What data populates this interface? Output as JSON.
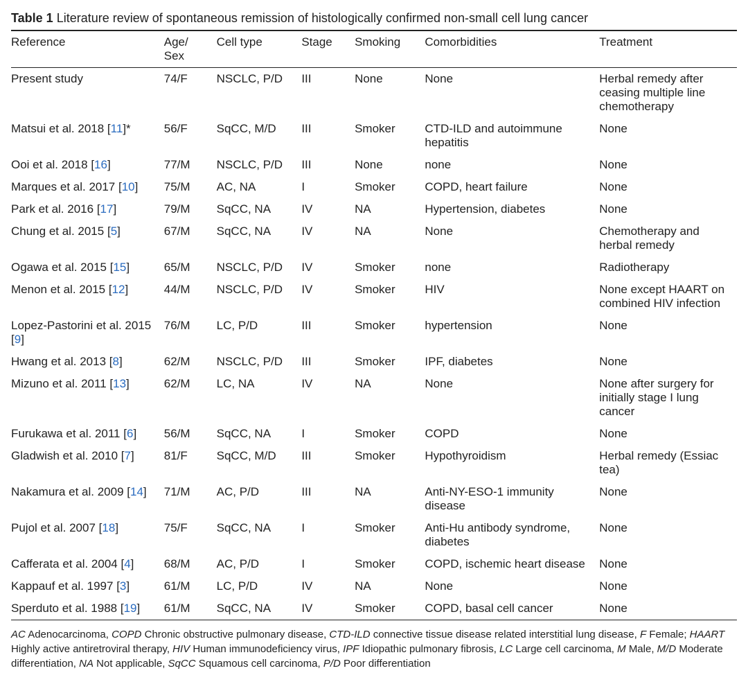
{
  "caption": {
    "label": "Table 1",
    "text": "Literature review of spontaneous remission of histologically confirmed non-small cell lung cancer"
  },
  "columns": [
    "Reference",
    "Age/\nSex",
    "Cell type",
    "Stage",
    "Smoking",
    "Comorbidities",
    "Treatment"
  ],
  "link_color": "#2a6bbf",
  "rows": [
    {
      "ref_text": "Present study",
      "ref_num": null,
      "suffix": "",
      "age": "74/F",
      "cell": "NSCLC, P/D",
      "stage": "III",
      "smoke": "None",
      "comor": "None",
      "treat": "Herbal remedy after ceasing multiple line chemotherapy"
    },
    {
      "ref_text": "Matsui et al. 2018 ",
      "ref_num": "11",
      "suffix": "*",
      "age": "56/F",
      "cell": "SqCC, M/D",
      "stage": "III",
      "smoke": "Smoker",
      "comor": "CTD-ILD and autoimmune hepatitis",
      "treat": "None"
    },
    {
      "ref_text": "Ooi et al. 2018 ",
      "ref_num": "16",
      "suffix": "",
      "age": "77/M",
      "cell": "NSCLC, P/D",
      "stage": "III",
      "smoke": "None",
      "comor": "none",
      "treat": "None"
    },
    {
      "ref_text": "Marques et al. 2017 ",
      "ref_num": "10",
      "suffix": "",
      "age": "75/M",
      "cell": "AC, NA",
      "stage": "I",
      "smoke": "Smoker",
      "comor": "COPD, heart failure",
      "treat": "None"
    },
    {
      "ref_text": "Park et al. 2016 ",
      "ref_num": "17",
      "suffix": "",
      "age": "79/M",
      "cell": "SqCC, NA",
      "stage": "IV",
      "smoke": "NA",
      "comor": "Hypertension, diabetes",
      "treat": "None"
    },
    {
      "ref_text": "Chung et al. 2015 ",
      "ref_num": "5",
      "suffix": "",
      "age": "67/M",
      "cell": "SqCC, NA",
      "stage": "IV",
      "smoke": "NA",
      "comor": "None",
      "treat": "Chemotherapy and herbal remedy"
    },
    {
      "ref_text": "Ogawa et al. 2015 ",
      "ref_num": "15",
      "suffix": "",
      "age": "65/M",
      "cell": "NSCLC, P/D",
      "stage": "IV",
      "smoke": "Smoker",
      "comor": "none",
      "treat": "Radiotherapy"
    },
    {
      "ref_text": "Menon et al. 2015 ",
      "ref_num": "12",
      "suffix": "",
      "age": "44/M",
      "cell": "NSCLC, P/D",
      "stage": "IV",
      "smoke": "Smoker",
      "comor": "HIV",
      "treat": "None except HAART on combined HIV infection"
    },
    {
      "ref_text": "Lopez-Pastorini et al. 2015 ",
      "ref_num": "9",
      "suffix": "",
      "age": "76/M",
      "cell": "LC, P/D",
      "stage": "III",
      "smoke": "Smoker",
      "comor": "hypertension",
      "treat": "None"
    },
    {
      "ref_text": "Hwang et al. 2013 ",
      "ref_num": "8",
      "suffix": "",
      "age": "62/M",
      "cell": "NSCLC, P/D",
      "stage": "III",
      "smoke": "Smoker",
      "comor": "IPF, diabetes",
      "treat": "None"
    },
    {
      "ref_text": "Mizuno et al. 2011 ",
      "ref_num": "13",
      "suffix": "",
      "age": "62/M",
      "cell": "LC, NA",
      "stage": "IV",
      "smoke": "NA",
      "comor": "None",
      "treat": "None after surgery for initially stage I lung cancer"
    },
    {
      "ref_text": "Furukawa et al. 2011 ",
      "ref_num": "6",
      "suffix": "",
      "age": "56/M",
      "cell": "SqCC, NA",
      "stage": "I",
      "smoke": "Smoker",
      "comor": "COPD",
      "treat": "None"
    },
    {
      "ref_text": "Gladwish et al. 2010 ",
      "ref_num": "7",
      "suffix": "",
      "age": "81/F",
      "cell": "SqCC, M/D",
      "stage": "III",
      "smoke": "Smoker",
      "comor": "Hypothyroidism",
      "treat": "Herbal remedy (Essiac tea)"
    },
    {
      "ref_text": "Nakamura et al. 2009 ",
      "ref_num": "14",
      "suffix": "",
      "age": "71/M",
      "cell": "AC, P/D",
      "stage": "III",
      "smoke": "NA",
      "comor": "Anti-NY-ESO-1 immunity disease",
      "treat": "None"
    },
    {
      "ref_text": "Pujol et al. 2007 ",
      "ref_num": "18",
      "suffix": "",
      "age": "75/F",
      "cell": "SqCC, NA",
      "stage": "I",
      "smoke": "Smoker",
      "comor": "Anti-Hu antibody syndrome, diabetes",
      "treat": "None"
    },
    {
      "ref_text": "Cafferata et al. 2004 ",
      "ref_num": "4",
      "suffix": "",
      "age": "68/M",
      "cell": "AC, P/D",
      "stage": "I",
      "smoke": "Smoker",
      "comor": "COPD, ischemic heart disease",
      "treat": "None"
    },
    {
      "ref_text": "Kappauf et al. 1997 ",
      "ref_num": "3",
      "suffix": "",
      "age": "61/M",
      "cell": "LC, P/D",
      "stage": "IV",
      "smoke": "NA",
      "comor": "None",
      "treat": "None"
    },
    {
      "ref_text": "Sperduto et al. 1988 ",
      "ref_num": "19",
      "suffix": "",
      "age": "61/M",
      "cell": "SqCC, NA",
      "stage": "IV",
      "smoke": "Smoker",
      "comor": "COPD, basal cell cancer",
      "treat": "None"
    }
  ],
  "abbreviations": [
    {
      "term": "AC",
      "def": "Adenocarcinoma, "
    },
    {
      "term": "COPD",
      "def": "Chronic obstructive pulmonary disease, "
    },
    {
      "term": "CTD-ILD",
      "def": "connective tissue disease related interstitial lung disease, "
    },
    {
      "term": "F",
      "def": "Female; "
    },
    {
      "term": "HAART",
      "def": "Highly active antiretroviral therapy, "
    },
    {
      "term": "HIV",
      "def": "Human immunodeficiency virus, "
    },
    {
      "term": "IPF",
      "def": "Idiopathic pulmonary fibrosis, "
    },
    {
      "term": "LC",
      "def": "Large cell carcinoma, "
    },
    {
      "term": "M",
      "def": "Male, "
    },
    {
      "term": "M/D",
      "def": "Moderate differentiation, "
    },
    {
      "term": "NA",
      "def": "Not applicable, "
    },
    {
      "term": "SqCC",
      "def": "Squamous cell carcinoma, "
    },
    {
      "term": "P/D",
      "def": "Poor differentiation"
    }
  ]
}
